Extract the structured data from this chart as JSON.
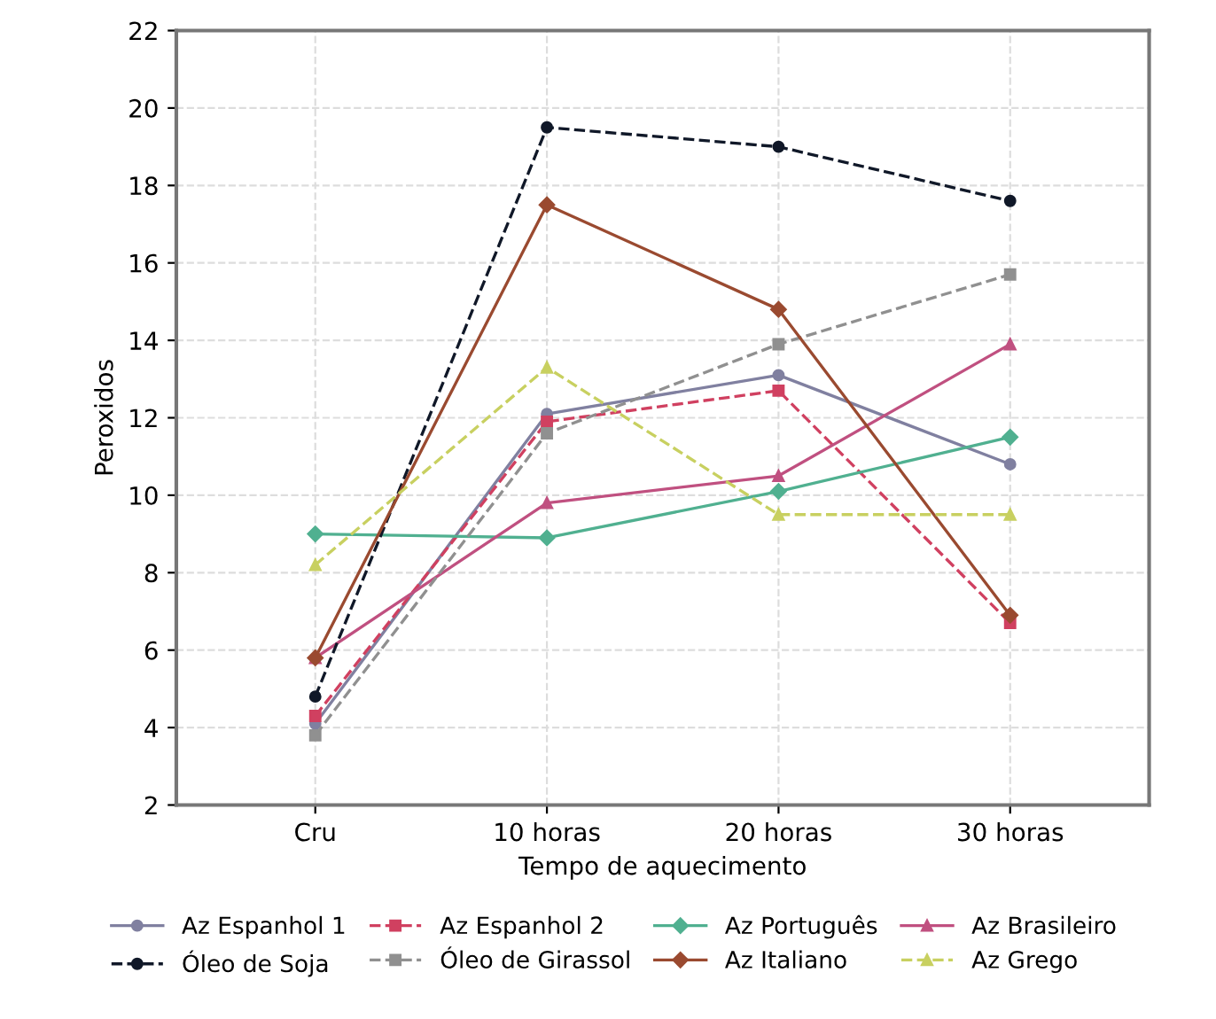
{
  "chart_data": {
    "type": "line",
    "xlabel": "Tempo de aquecimento",
    "ylabel": "Peroxidos",
    "categories": [
      "Cru",
      "10 horas",
      "20 horas",
      "30 horas"
    ],
    "ylim": [
      2,
      22
    ],
    "yticks": [
      2,
      4,
      6,
      8,
      10,
      12,
      14,
      16,
      18,
      20,
      22
    ],
    "grid": true,
    "legend": "bottom",
    "series": [
      {
        "name": "Az Espanhol 1",
        "color": "#8080a0",
        "marker": "circle",
        "line_style": "solid",
        "values": [
          4.1,
          12.1,
          13.1,
          10.8
        ]
      },
      {
        "name": "Az Espanhol 2",
        "color": "#d04060",
        "marker": "square",
        "line_style": "dashed",
        "values": [
          4.3,
          11.9,
          12.7,
          6.7
        ]
      },
      {
        "name": "Az Português",
        "color": "#50b090",
        "marker": "diamond",
        "line_style": "solid",
        "values": [
          9.0,
          8.9,
          10.1,
          11.5
        ]
      },
      {
        "name": "Az Brasileiro",
        "color": "#c05080",
        "marker": "triangle",
        "line_style": "solid",
        "values": [
          5.8,
          9.8,
          10.5,
          13.9
        ]
      },
      {
        "name": "Óleo de Soja",
        "color": "#101828",
        "marker": "circle",
        "line_style": "dashed",
        "values": [
          4.8,
          19.5,
          19.0,
          17.6
        ]
      },
      {
        "name": "Óleo de Girassol",
        "color": "#909090",
        "marker": "square",
        "line_style": "dashed",
        "values": [
          3.8,
          11.6,
          13.9,
          15.7
        ]
      },
      {
        "name": "Az Italiano",
        "color": "#9a4a30",
        "marker": "diamond",
        "line_style": "solid",
        "values": [
          5.8,
          17.5,
          14.8,
          6.9
        ]
      },
      {
        "name": "Az Grego",
        "color": "#c8d060",
        "marker": "triangle",
        "line_style": "dashed",
        "values": [
          8.2,
          13.3,
          9.5,
          9.5
        ]
      }
    ]
  }
}
